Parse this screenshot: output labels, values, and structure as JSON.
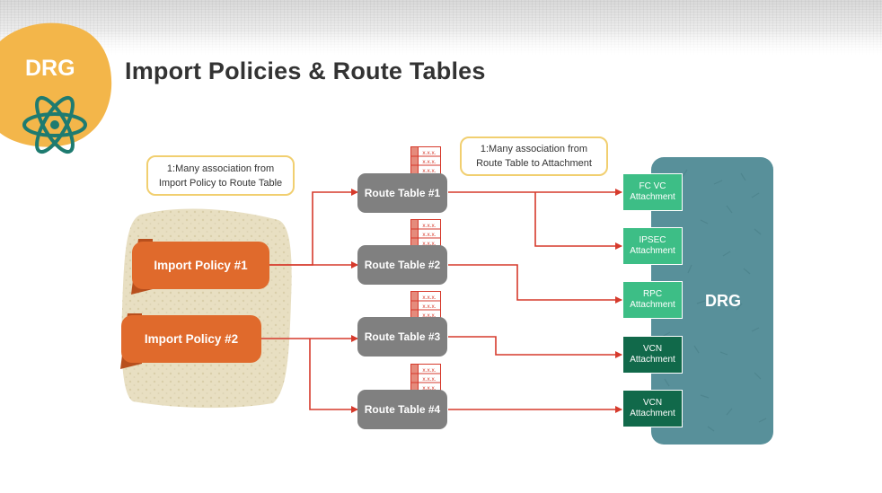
{
  "title": "Import Policies & Route Tables",
  "logo": {
    "text": "DRG",
    "icon": "atom-icon"
  },
  "callouts": {
    "left": {
      "line1": "1:Many association from",
      "line2": "Import Policy to Route Table"
    },
    "right": {
      "line1": "1:Many association from",
      "line2": "Route Table to Attachment"
    }
  },
  "policies": [
    "Import Policy #1",
    "Import Policy #2"
  ],
  "route_tables": [
    "Route Table #1",
    "Route Table #2",
    "Route Table #3",
    "Route Table #4"
  ],
  "table_cell_text": "x.x.x.",
  "drg_label": "DRG",
  "attachments": [
    {
      "line1": "FC VC",
      "line2": "Attachment"
    },
    {
      "line1": "IPSEC",
      "line2": "Attachment"
    },
    {
      "line1": "RPC",
      "line2": "Attachment"
    },
    {
      "line1": "VCN",
      "line2": "Attachment"
    },
    {
      "line1": "VCN",
      "line2": "Attachment"
    }
  ],
  "colors": {
    "policy": "#e06a2c",
    "route_table": "#808080",
    "arrow": "#d63a2c",
    "attachment_light": "#3dbe86",
    "attachment_dark": "#11694a",
    "drg_panel": "#58909a",
    "callout_border": "#f1cf70",
    "logo_blob": "#f3b64a"
  }
}
